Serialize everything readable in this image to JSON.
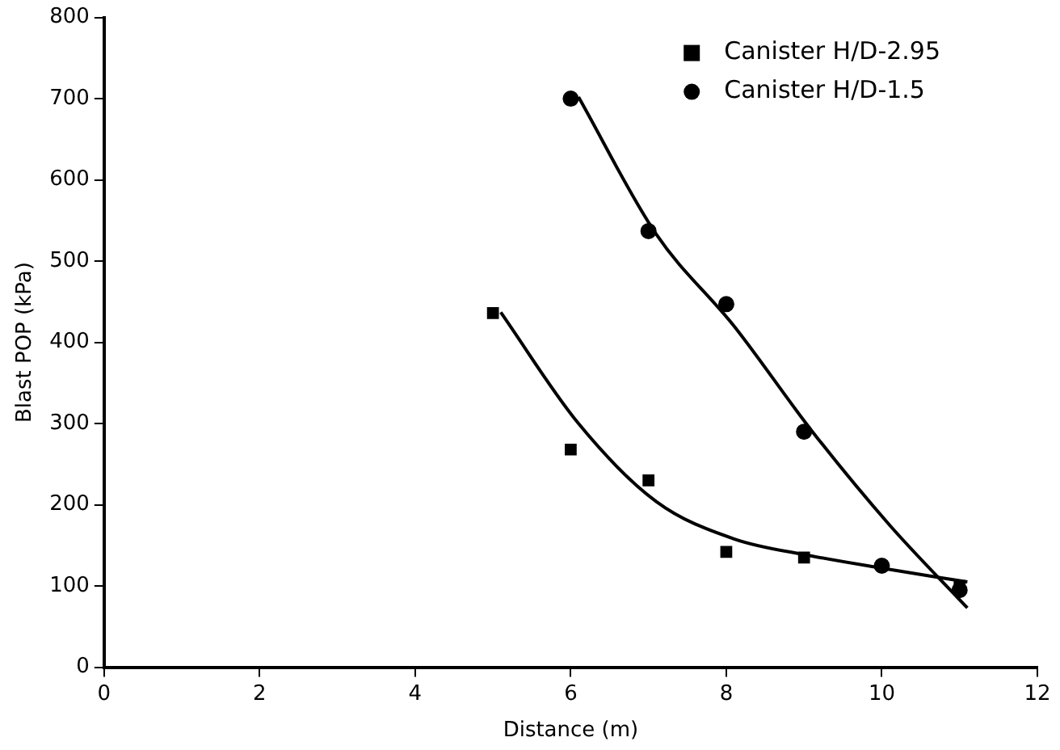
{
  "chart_data": {
    "type": "scatter",
    "xlabel": "Distance (m)",
    "ylabel": "Blast POP (kPa)",
    "xlim": [
      0,
      12
    ],
    "ylim": [
      0,
      800
    ],
    "xticks": [
      0,
      2,
      4,
      6,
      8,
      10,
      12
    ],
    "yticks": [
      0,
      100,
      200,
      300,
      400,
      500,
      600,
      700,
      800
    ],
    "legend": "top right",
    "series": [
      {
        "name": "Canister H/D-2.95",
        "color": "#000000",
        "marker": "square",
        "x": [
          5,
          6,
          7,
          8,
          9,
          11
        ],
        "values": [
          436,
          268,
          230,
          142,
          135,
          100
        ]
      },
      {
        "name": "Canister H/D-1.5",
        "color": "#000000",
        "marker": "circle",
        "x": [
          6,
          7,
          8,
          9,
          10,
          11
        ],
        "values": [
          700,
          537,
          447,
          290,
          125,
          95
        ]
      },
      {
        "type": "line",
        "color": "#000000",
        "marker": "none",
        "x": [
          5.1,
          6.1,
          7.1,
          8.1,
          9.1,
          10,
          11.1
        ],
        "values": [
          437,
          300,
          204,
          158,
          137,
          122,
          105
        ]
      },
      {
        "type": "line",
        "color": "#000000",
        "marker": "none",
        "x": [
          6.1,
          7.1,
          8.1,
          9.1,
          10.1,
          11.1
        ],
        "values": [
          702,
          533,
          420,
          291,
          175,
          73
        ]
      }
    ]
  }
}
